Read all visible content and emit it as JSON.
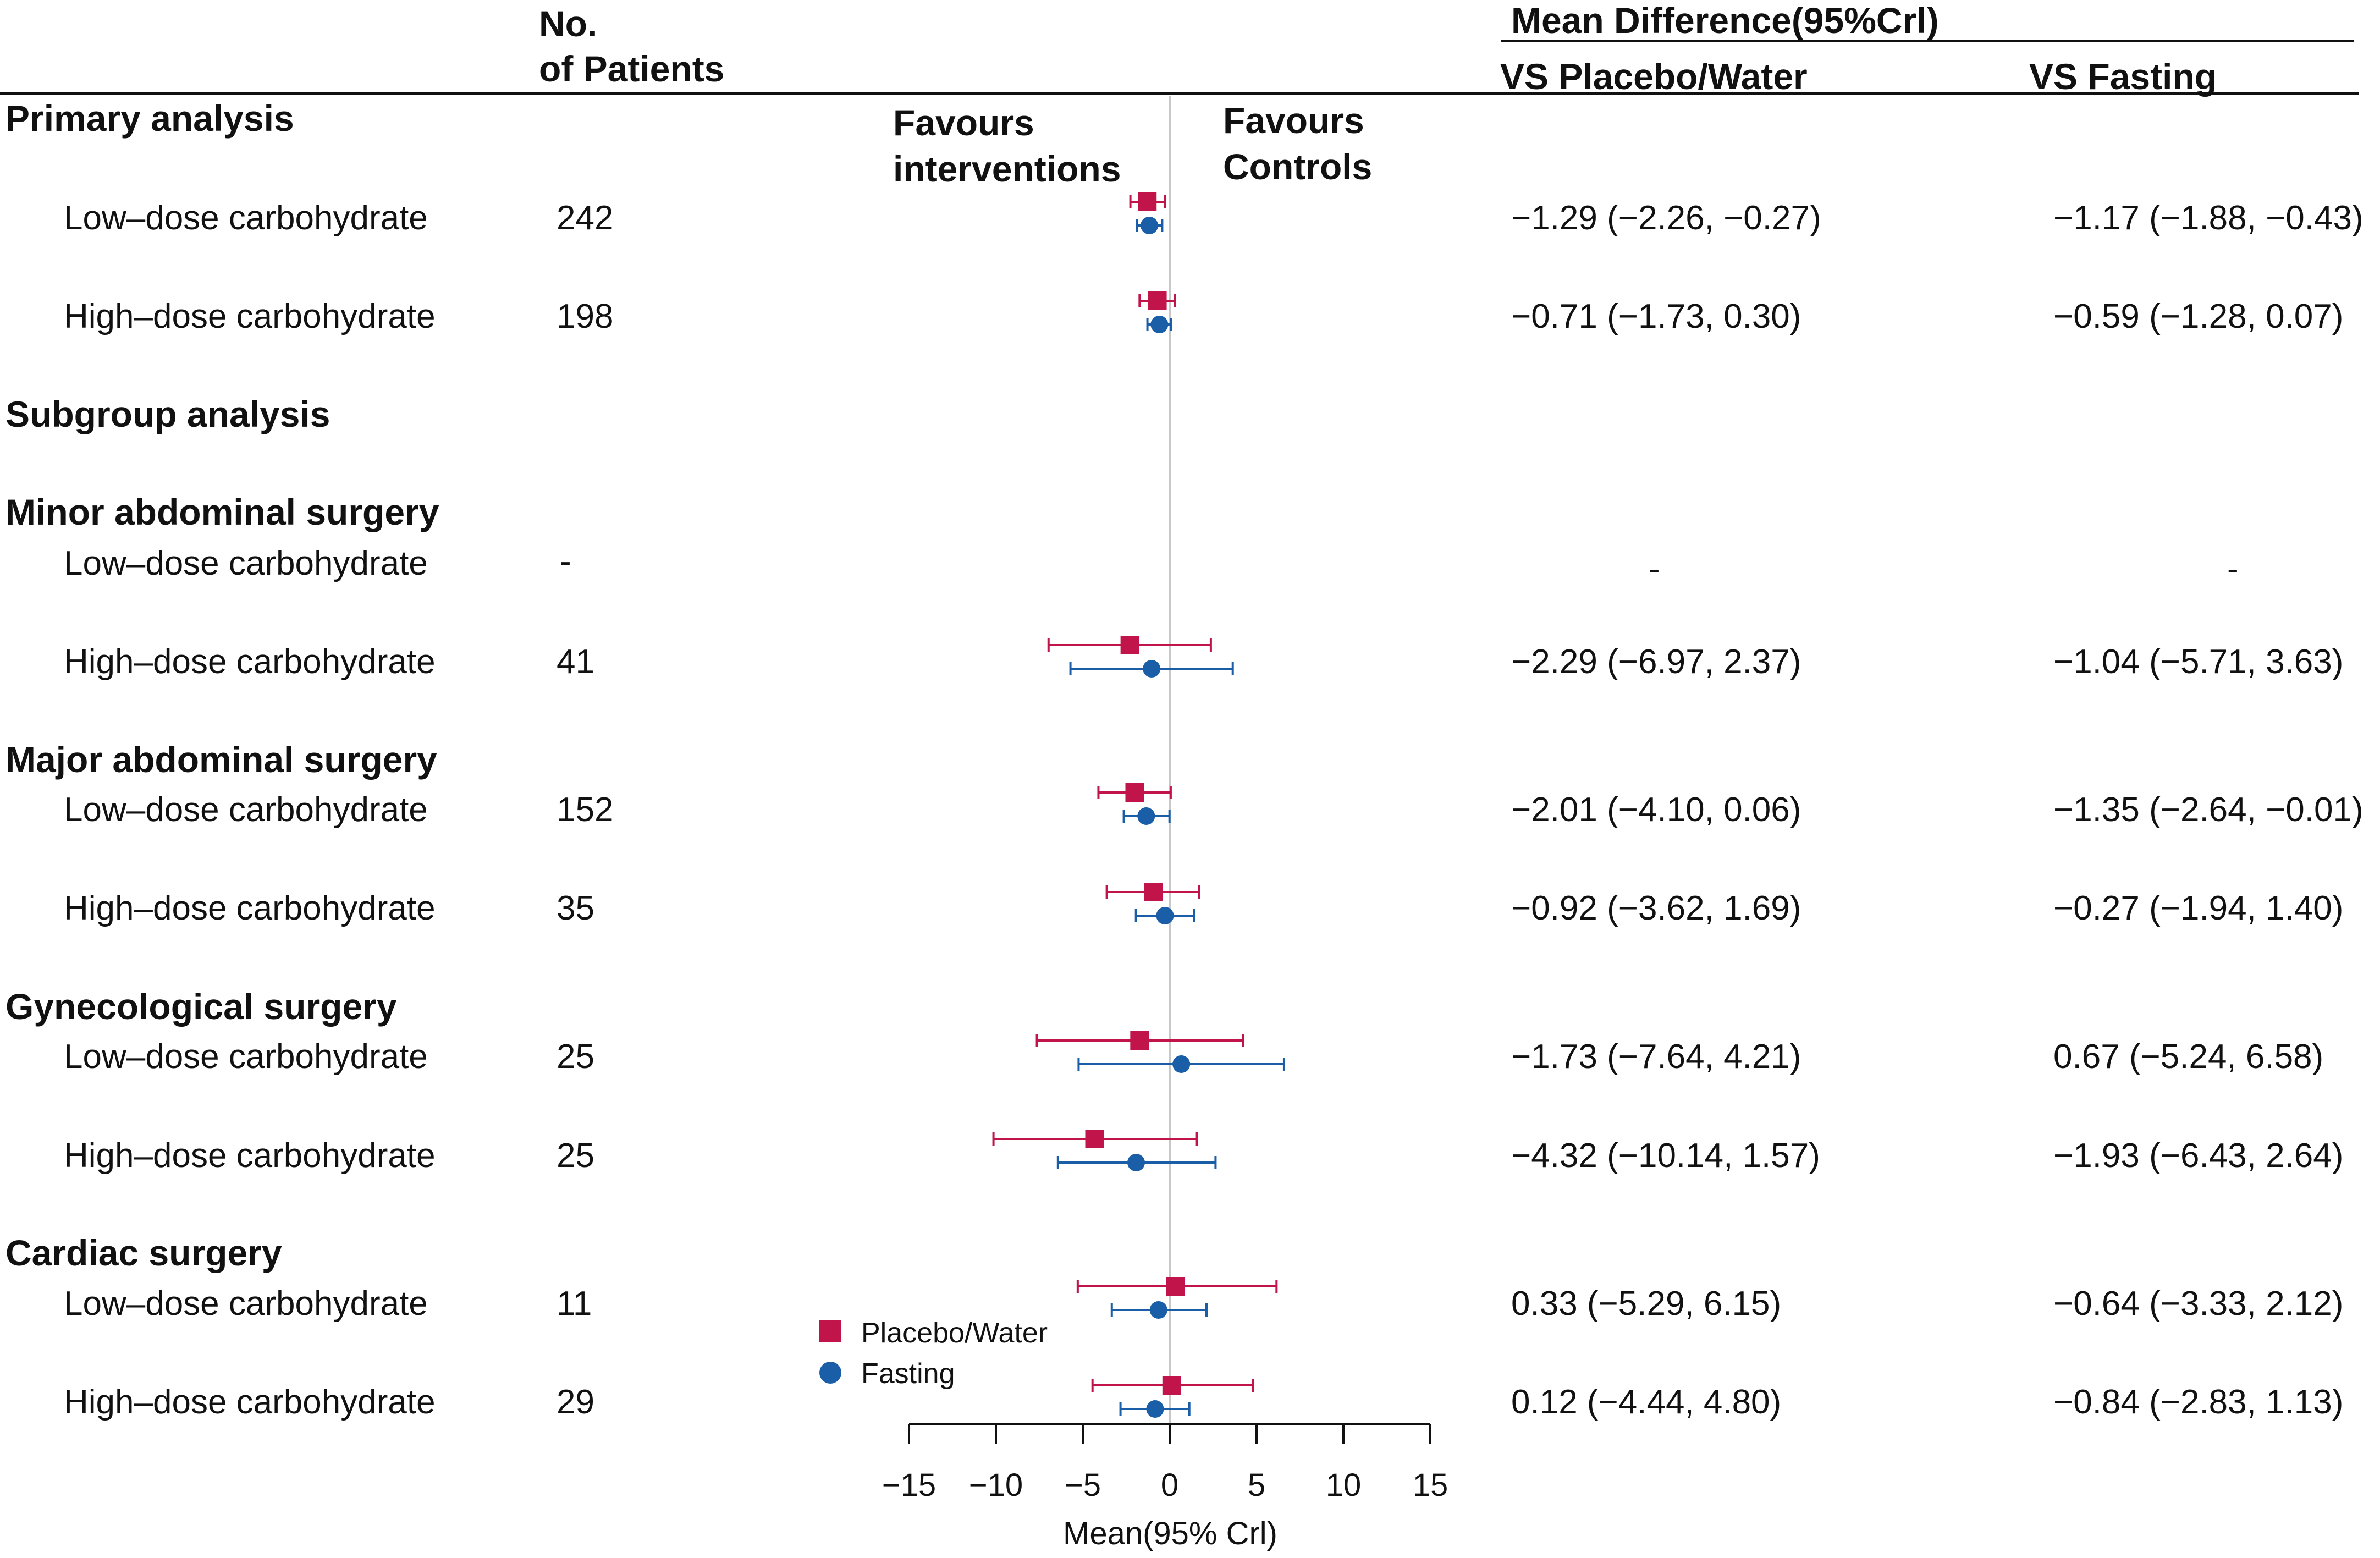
{
  "header": {
    "patients_line1": "No.",
    "patients_line2": "of Patients",
    "mean_diff": "Mean Difference(95%Crl)",
    "vs_placebo": "VS Placebo/Water",
    "vs_fasting": "VS Fasting",
    "favours_int_line1": "Favours",
    "favours_int_line2": "interventions",
    "favours_ctrl_line1": "Favours",
    "favours_ctrl_line2": "Controls"
  },
  "sections": [
    {
      "title": "Primary analysis"
    },
    {
      "title": "Subgroup analysis"
    },
    {
      "title": "Minor abdominal surgery"
    },
    {
      "title": "Major abdominal surgery"
    },
    {
      "title": "Gynecological surgery"
    },
    {
      "title": "Cardiac surgery"
    }
  ],
  "rows": [
    {
      "label": "Low–dose carbohydrate",
      "n": "242",
      "placebo_text": "−1.29 (−2.26, −0.27)",
      "fasting_text": "−1.17 (−1.88, −0.43)"
    },
    {
      "label": "High–dose carbohydrate",
      "n": "198",
      "placebo_text": "−0.71 (−1.73, 0.30)",
      "fasting_text": "−0.59 (−1.28, 0.07)"
    },
    {
      "label": "Low–dose carbohydrate",
      "n": "-",
      "placebo_text": "-",
      "fasting_text": "-"
    },
    {
      "label": "High–dose carbohydrate",
      "n": "41",
      "placebo_text": "−2.29 (−6.97, 2.37)",
      "fasting_text": "−1.04 (−5.71, 3.63)"
    },
    {
      "label": "Low–dose carbohydrate",
      "n": "152",
      "placebo_text": "−2.01 (−4.10, 0.06)",
      "fasting_text": "−1.35 (−2.64, −0.01)"
    },
    {
      "label": "High–dose carbohydrate",
      "n": "35",
      "placebo_text": "−0.92 (−3.62, 1.69)",
      "fasting_text": "−0.27 (−1.94, 1.40)"
    },
    {
      "label": "Low–dose carbohydrate",
      "n": "25",
      "placebo_text": "−1.73 (−7.64, 4.21)",
      "fasting_text": "0.67 (−5.24, 6.58)"
    },
    {
      "label": "High–dose carbohydrate",
      "n": "25",
      "placebo_text": "−4.32 (−10.14, 1.57)",
      "fasting_text": "−1.93 (−6.43, 2.64)"
    },
    {
      "label": "Low–dose carbohydrate",
      "n": "11",
      "placebo_text": "0.33 (−5.29, 6.15)",
      "fasting_text": "−0.64 (−3.33, 2.12)"
    },
    {
      "label": "High–dose carbohydrate",
      "n": "29",
      "placebo_text": "0.12 (−4.44, 4.80)",
      "fasting_text": "−0.84 (−2.83, 1.13)"
    }
  ],
  "legend": {
    "placebo": "Placebo/Water",
    "fasting": "Fasting"
  },
  "colors": {
    "placebo": "#c0144a",
    "fasting": "#1a5ea8",
    "refline": "#c8c8c8",
    "axis": "#111111"
  },
  "chart_data": {
    "type": "scatter",
    "title": "",
    "xlabel": "Mean(95% Crl)",
    "ylabel": "",
    "xlim": [
      -15,
      15
    ],
    "xticks": [
      -15,
      -10,
      -5,
      0,
      5,
      10,
      15
    ],
    "xtick_labels": [
      "−15",
      "−10",
      "−5",
      "0",
      "5",
      "10",
      "15"
    ],
    "reference_line": 0,
    "series": [
      {
        "name": "Placebo/Water",
        "marker": "square",
        "points": [
          {
            "row": 0,
            "mean": -1.29,
            "lo": -2.26,
            "hi": -0.27
          },
          {
            "row": 1,
            "mean": -0.71,
            "lo": -1.73,
            "hi": 0.3
          },
          {
            "row": 3,
            "mean": -2.29,
            "lo": -6.97,
            "hi": 2.37
          },
          {
            "row": 4,
            "mean": -2.01,
            "lo": -4.1,
            "hi": 0.06
          },
          {
            "row": 5,
            "mean": -0.92,
            "lo": -3.62,
            "hi": 1.69
          },
          {
            "row": 6,
            "mean": -1.73,
            "lo": -7.64,
            "hi": 4.21
          },
          {
            "row": 7,
            "mean": -4.32,
            "lo": -10.14,
            "hi": 1.57
          },
          {
            "row": 8,
            "mean": 0.33,
            "lo": -5.29,
            "hi": 6.15
          },
          {
            "row": 9,
            "mean": 0.12,
            "lo": -4.44,
            "hi": 4.8
          }
        ]
      },
      {
        "name": "Fasting",
        "marker": "circle",
        "points": [
          {
            "row": 0,
            "mean": -1.17,
            "lo": -1.88,
            "hi": -0.43
          },
          {
            "row": 1,
            "mean": -0.59,
            "lo": -1.28,
            "hi": 0.07
          },
          {
            "row": 3,
            "mean": -1.04,
            "lo": -5.71,
            "hi": 3.63
          },
          {
            "row": 4,
            "mean": -1.35,
            "lo": -2.64,
            "hi": -0.01
          },
          {
            "row": 5,
            "mean": -0.27,
            "lo": -1.94,
            "hi": 1.4
          },
          {
            "row": 6,
            "mean": 0.67,
            "lo": -5.24,
            "hi": 6.58
          },
          {
            "row": 7,
            "mean": -1.93,
            "lo": -6.43,
            "hi": 2.64
          },
          {
            "row": 8,
            "mean": -0.64,
            "lo": -3.33,
            "hi": 2.12
          },
          {
            "row": 9,
            "mean": -0.84,
            "lo": -2.83,
            "hi": 1.13
          }
        ]
      }
    ]
  }
}
